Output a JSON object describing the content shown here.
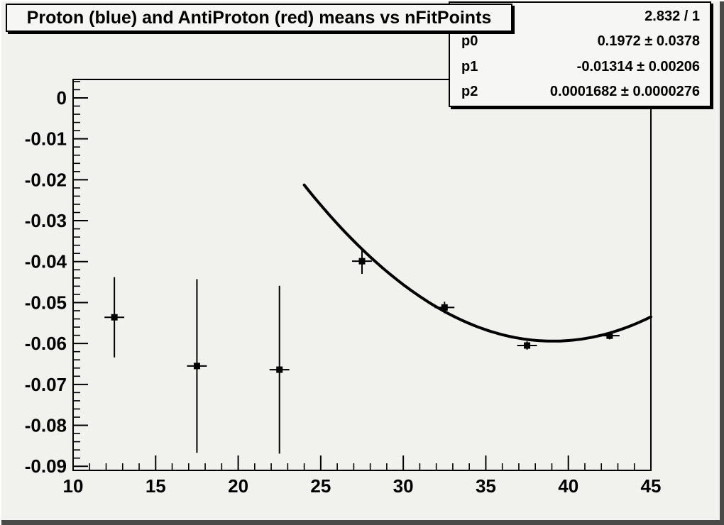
{
  "window": {
    "background": "#f1f1ee",
    "box_fill": "#f6f6f4",
    "line_color": "#000000"
  },
  "title_box": {
    "text": "Proton (blue) and AntiProton (red) means vs nFitPoints"
  },
  "stats_box": {
    "chi2_over_ndf": "2.832 / 1",
    "rows": [
      {
        "label": "p0",
        "value": "0.1972 ± 0.0378"
      },
      {
        "label": "p1",
        "value": "-0.01314 ± 0.00206"
      },
      {
        "label": "p2",
        "value": "0.0001682 ± 0.0000276"
      }
    ]
  },
  "chart_data": {
    "type": "scatter",
    "title": "Proton (blue) and AntiProton (red) means vs nFitPoints",
    "xlabel": "",
    "ylabel": "",
    "xlim": [
      10,
      45
    ],
    "ylim": [
      -0.091,
      0.0045
    ],
    "grid": false,
    "legend_position": "none",
    "marker": "filled-square",
    "marker_color": "#000000",
    "x": [
      12.5,
      17.5,
      22.5,
      27.5,
      32.5,
      37.5,
      42.5
    ],
    "y": [
      -0.0536,
      -0.0655,
      -0.0664,
      -0.0399,
      -0.0512,
      -0.0605,
      -0.0581
    ],
    "yerr": [
      0.0098,
      0.0212,
      0.0205,
      0.0031,
      0.0014,
      0.001,
      0.0009
    ],
    "xerr": 0.6,
    "x_major_ticks": [
      10,
      15,
      20,
      25,
      30,
      35,
      40,
      45
    ],
    "x_tick_labels": [
      "10",
      "15",
      "20",
      "25",
      "30",
      "35",
      "40",
      "45"
    ],
    "x_minor_step": 1,
    "y_major_ticks": [
      0,
      -0.01,
      -0.02,
      -0.03,
      -0.04,
      -0.05,
      -0.06,
      -0.07,
      -0.08,
      -0.09
    ],
    "y_tick_labels": [
      "0",
      "-0.01",
      "-0.02",
      "-0.03",
      "-0.04",
      "-0.05",
      "-0.06",
      "-0.07",
      "-0.08",
      "-0.09"
    ],
    "y_minor_step": 0.002,
    "fit_curve": {
      "formula": "p0 + p1*x + p2*x^2",
      "p0": 0.1972,
      "p1": -0.01314,
      "p2": 0.0001682,
      "draw_range": [
        24,
        45
      ],
      "color": "#000000"
    }
  }
}
